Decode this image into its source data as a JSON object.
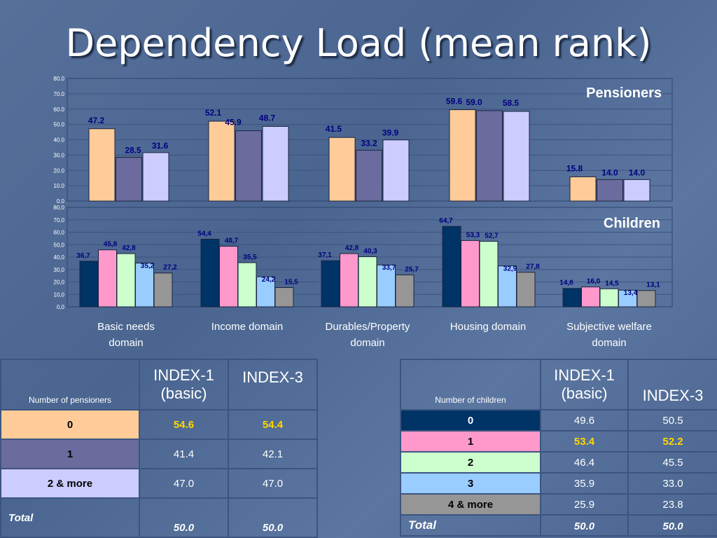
{
  "slide_title": "Dependency Load (mean rank)",
  "chart_data": [
    {
      "type": "bar",
      "panel_label": "Pensioners",
      "ylim": [
        0,
        80
      ],
      "y_ticks": [
        "0.0",
        "10.0",
        "20.0",
        "30.0",
        "40.0",
        "50.0",
        "60.0",
        "70.0",
        "80.0"
      ],
      "categories": [
        "Basic needs domain",
        "Income domain",
        "Durables/Property domain",
        "Housing domain",
        "Subjective welfare domain"
      ],
      "series": [
        {
          "color": "#ffcc99",
          "values": [
            47.2,
            52.1,
            41.5,
            59.6,
            15.8
          ],
          "labels": [
            "47.2",
            "52.1",
            "41.5",
            "59.6",
            "15.8"
          ]
        },
        {
          "color": "#6b6b9e",
          "values": [
            28.5,
            45.9,
            33.2,
            59.0,
            14.0
          ],
          "labels": [
            "28.5",
            "45.9",
            "33.2",
            "59.0",
            "14.0"
          ]
        },
        {
          "color": "#ccccff",
          "values": [
            31.6,
            48.7,
            39.9,
            58.5,
            14.0
          ],
          "labels": [
            "31.6",
            "48.7",
            "39.9",
            "58.5",
            "14.0"
          ]
        }
      ]
    },
    {
      "type": "bar",
      "panel_label": "Children",
      "ylim": [
        0,
        80
      ],
      "y_ticks": [
        "0,0",
        "10,0",
        "20,0",
        "30,0",
        "40,0",
        "50,0",
        "60,0",
        "70,0",
        "80,0"
      ],
      "categories": [
        "Basic needs domain",
        "Income domain",
        "Durables/Property domain",
        "Housing domain",
        "Subjective welfare domain"
      ],
      "series": [
        {
          "color": "#003366",
          "values": [
            36.7,
            54.4,
            37.1,
            64.7,
            14.8
          ],
          "labels": [
            "36,7",
            "54,4",
            "37,1",
            "64,7",
            "14,8"
          ]
        },
        {
          "color": "#ff99cc",
          "values": [
            45.8,
            48.7,
            42.8,
            53.3,
            16.0
          ],
          "labels": [
            "45,8",
            "48,7",
            "42,8",
            "53,3",
            "16,0"
          ]
        },
        {
          "color": "#ccffcc",
          "values": [
            42.8,
            35.5,
            40.3,
            52.7,
            14.5
          ],
          "labels": [
            "42,8",
            "35,5",
            "40,3",
            "52,7",
            "14,5"
          ]
        },
        {
          "color": "#99ccff",
          "values": [
            35.2,
            24.2,
            33.7,
            32.9,
            13.4
          ],
          "labels": [
            "35,2",
            "24,2",
            "33,7",
            "32,9",
            "13,4"
          ]
        },
        {
          "color": "#969696",
          "values": [
            27.2,
            15.5,
            25.7,
            27.8,
            13.1
          ],
          "labels": [
            "27,2",
            "15,5",
            "25,7",
            "27,8",
            "13,1"
          ]
        }
      ]
    }
  ],
  "x_labels": [
    [
      "Basic needs",
      "domain"
    ],
    [
      "Income domain"
    ],
    [
      "Durables/Property",
      "domain"
    ],
    [
      "Housing domain"
    ],
    [
      "Subjective welfare",
      "domain"
    ]
  ],
  "pensioners_table": {
    "header_label": "Number of pensioners",
    "col1_line1": "INDEX-1",
    "col1_line2": "(basic)",
    "col2": "INDEX-3",
    "rows": [
      {
        "label": "0",
        "color": "#ffcc99",
        "v1": "54.6",
        "v2": "54.4",
        "highlight": true
      },
      {
        "label": "1",
        "color": "#6b6b9e",
        "v1": "41.4",
        "v2": "42.1",
        "highlight": false
      },
      {
        "label": "2 & more",
        "color": "#ccccff",
        "v1": "47.0",
        "v2": "47.0",
        "highlight": false
      }
    ],
    "total_label": "Total",
    "total_v1": "50.0",
    "total_v2": "50.0"
  },
  "children_table": {
    "header_label": "Number of children",
    "col1_line1": "INDEX-1",
    "col1_line2": "(basic)",
    "col2": "INDEX-3",
    "rows": [
      {
        "label": "0",
        "color": "#003366",
        "v1": "49.6",
        "v2": "50.5",
        "highlight": false
      },
      {
        "label": "1",
        "color": "#ff99cc",
        "v1": "53.4",
        "v2": "52.2",
        "highlight": true
      },
      {
        "label": "2",
        "color": "#ccffcc",
        "v1": "46.4",
        "v2": "45.5",
        "highlight": false
      },
      {
        "label": "3",
        "color": "#99ccff",
        "v1": "35.9",
        "v2": "33.0",
        "highlight": false
      },
      {
        "label": "4 & more",
        "color": "#969696",
        "v1": "25.9",
        "v2": "23.8",
        "highlight": false
      }
    ],
    "total_label": "Total",
    "total_v1": "50.0",
    "total_v2": "50.0"
  }
}
